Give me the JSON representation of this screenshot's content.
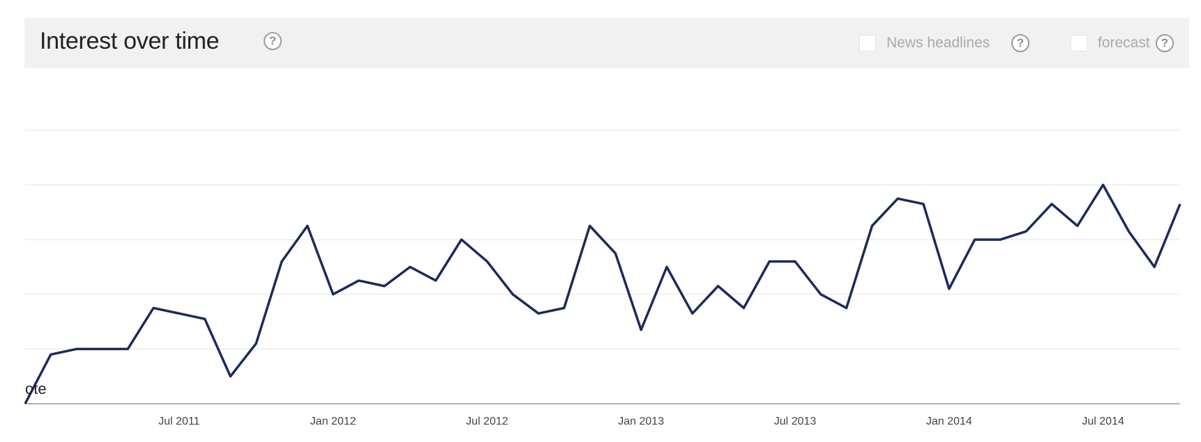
{
  "header": {
    "title": "Interest over time",
    "help_glyph": "?",
    "options": [
      {
        "label": "News headlines",
        "checked": false
      },
      {
        "label": "forecast",
        "checked": false
      }
    ]
  },
  "chart_data": {
    "type": "line",
    "title": "Interest over time",
    "xlabel": "",
    "ylabel": "",
    "grid": true,
    "x_tick_labels": [
      "Jul 2011",
      "Jan 2012",
      "Jul 2012",
      "Jan 2013",
      "Jul 2013",
      "Jan 2014",
      "Jul 2014"
    ],
    "x": [
      "2011-01",
      "2011-02",
      "2011-03",
      "2011-04",
      "2011-05",
      "2011-06",
      "2011-07",
      "2011-08",
      "2011-09",
      "2011-10",
      "2011-11",
      "2011-12",
      "2012-01",
      "2012-02",
      "2012-03",
      "2012-04",
      "2012-05",
      "2012-06",
      "2012-07",
      "2012-08",
      "2012-09",
      "2012-10",
      "2012-11",
      "2012-12",
      "2013-01",
      "2013-02",
      "2013-03",
      "2013-04",
      "2013-05",
      "2013-06",
      "2013-07",
      "2013-08",
      "2013-09",
      "2013-10",
      "2013-11",
      "2013-12",
      "2014-01",
      "2014-02",
      "2014-03",
      "2014-04",
      "2014-05",
      "2014-06",
      "2014-07",
      "2014-08",
      "2014-09",
      "2014-10"
    ],
    "ylim": [
      0,
      100
    ],
    "series": [
      {
        "color": "#1a2b5c",
        "values": [
          0,
          18,
          20,
          20,
          20,
          35,
          33,
          31,
          10,
          22,
          52,
          65,
          40,
          45,
          43,
          50,
          45,
          60,
          52,
          40,
          33,
          35,
          65,
          55,
          27,
          50,
          33,
          43,
          35,
          52,
          52,
          40,
          35,
          65,
          75,
          73,
          42,
          60,
          60,
          63,
          73,
          65,
          80,
          63,
          50,
          73
        ]
      }
    ],
    "annotation": "ote"
  }
}
